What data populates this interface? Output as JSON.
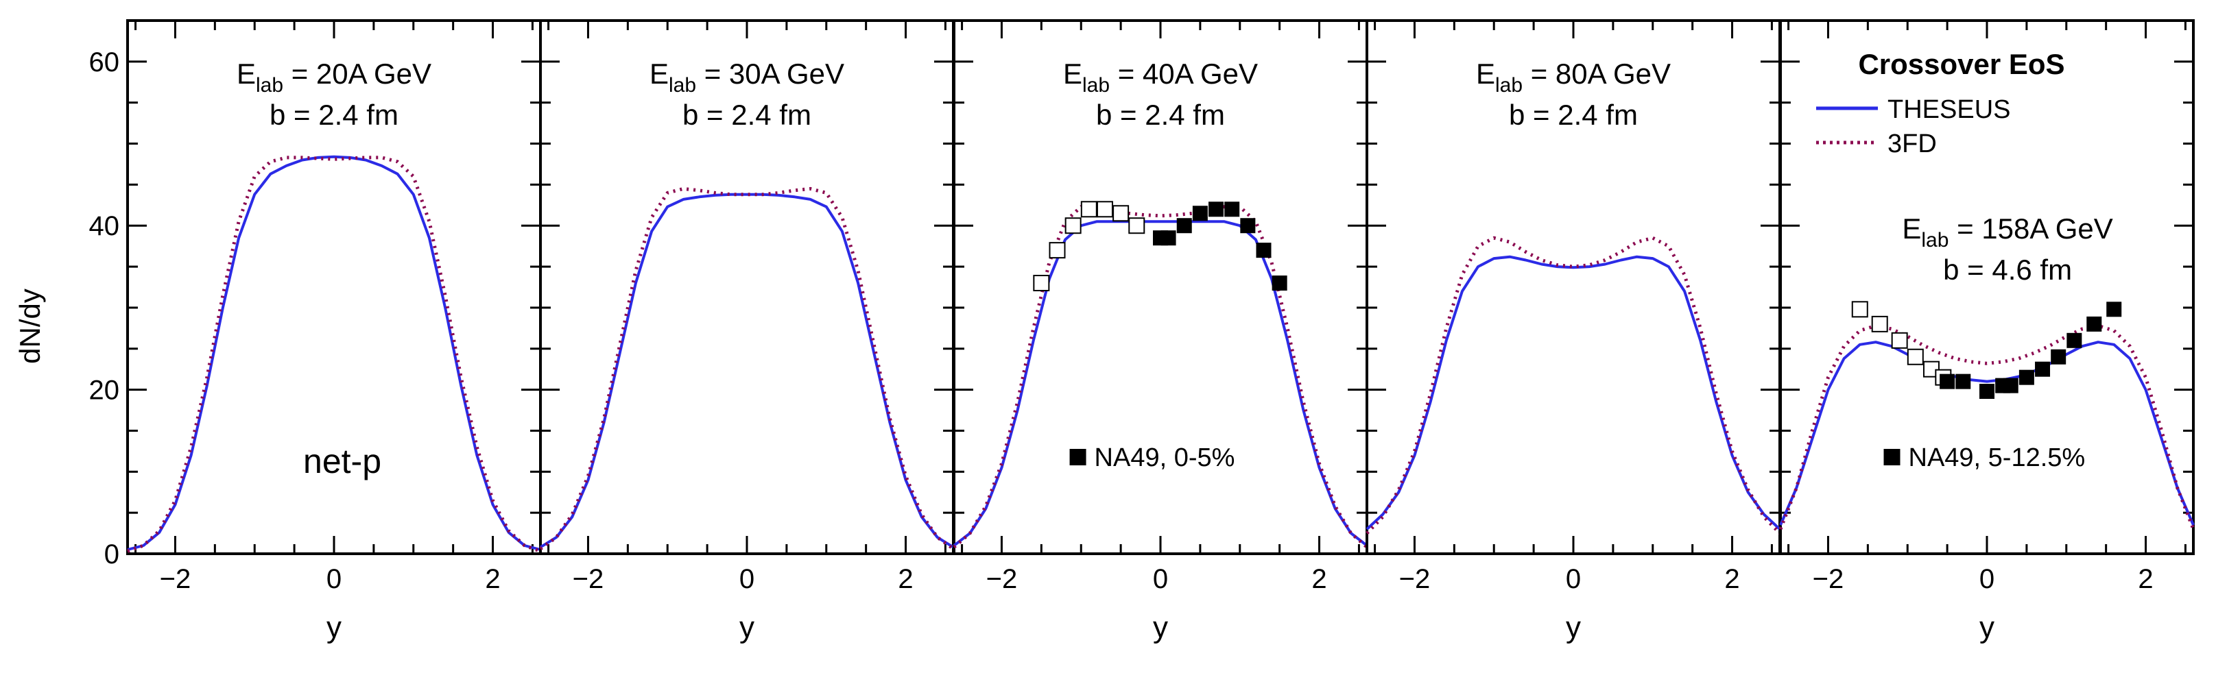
{
  "colors": {
    "theseus": "#2b2be6",
    "threefd": "#8b0a50",
    "axis": "#000000",
    "data_marker": "#000000"
  },
  "y_axis_label": "dN/dy",
  "x_axis_label": "y",
  "legend": {
    "title": "Crossover EoS",
    "items": [
      {
        "label": "THESEUS",
        "style": "solid",
        "color": "#2b2be6"
      },
      {
        "label": "3FD",
        "style": "dotted",
        "color": "#8b0a50"
      }
    ]
  },
  "chart_data": [
    {
      "type": "line",
      "panel": 1,
      "title_main": "E",
      "title_sub": "lab",
      "title_rest": " = 20A GeV",
      "impact": "b = 2.4 fm",
      "note": "net-p",
      "xlabel": "y",
      "ylabel": "dN/dy",
      "xlim": [
        -2.6,
        2.6
      ],
      "ylim": [
        0,
        65
      ],
      "xticks": [
        -2,
        0,
        2
      ],
      "yticks": [
        0,
        20,
        40,
        60
      ],
      "series": [
        {
          "name": "THESEUS",
          "x": [
            -2.6,
            -2.4,
            -2.2,
            -2.0,
            -1.8,
            -1.6,
            -1.4,
            -1.2,
            -1.0,
            -0.8,
            -0.6,
            -0.4,
            -0.2,
            0.0,
            0.2,
            0.4,
            0.6,
            0.8,
            1.0,
            1.2,
            1.4,
            1.6,
            1.8,
            2.0,
            2.2,
            2.4,
            2.6
          ],
          "y": [
            0.5,
            1.0,
            2.6,
            6.0,
            12.0,
            20.5,
            30.0,
            38.5,
            43.8,
            46.3,
            47.3,
            48.0,
            48.3,
            48.4,
            48.3,
            48.0,
            47.3,
            46.3,
            43.8,
            38.5,
            30.0,
            20.5,
            12.0,
            6.0,
            2.6,
            1.0,
            0.5
          ]
        },
        {
          "name": "3FD",
          "x": [
            -2.6,
            -2.4,
            -2.2,
            -2.0,
            -1.8,
            -1.6,
            -1.4,
            -1.2,
            -1.0,
            -0.8,
            -0.6,
            -0.4,
            -0.2,
            0.0,
            0.2,
            0.4,
            0.6,
            0.8,
            1.0,
            1.2,
            1.4,
            1.6,
            1.8,
            2.0,
            2.2,
            2.4,
            2.6
          ],
          "y": [
            0.3,
            1.0,
            2.8,
            6.5,
            13.0,
            21.5,
            31.5,
            40.5,
            46.0,
            47.8,
            48.3,
            48.3,
            48.2,
            48.1,
            48.2,
            48.3,
            48.3,
            47.8,
            46.0,
            40.5,
            31.5,
            21.5,
            13.0,
            6.5,
            2.8,
            1.0,
            0.3
          ]
        }
      ],
      "data_points": null
    },
    {
      "type": "line",
      "panel": 2,
      "title_main": "E",
      "title_sub": "lab",
      "title_rest": " = 30A GeV",
      "impact": "b = 2.4 fm",
      "xlabel": "y",
      "ylabel": "",
      "xlim": [
        -2.6,
        2.6
      ],
      "ylim": [
        0,
        65
      ],
      "xticks": [
        -2,
        0,
        2
      ],
      "yticks": [
        0,
        20,
        40,
        60
      ],
      "series": [
        {
          "name": "THESEUS",
          "x": [
            -2.6,
            -2.4,
            -2.2,
            -2.0,
            -1.8,
            -1.6,
            -1.4,
            -1.2,
            -1.0,
            -0.8,
            -0.6,
            -0.4,
            -0.2,
            0.0,
            0.2,
            0.4,
            0.6,
            0.8,
            1.0,
            1.2,
            1.4,
            1.6,
            1.8,
            2.0,
            2.2,
            2.4,
            2.6
          ],
          "y": [
            0.8,
            2.0,
            4.5,
            9.0,
            16.0,
            24.5,
            33.0,
            39.3,
            42.3,
            43.2,
            43.5,
            43.7,
            43.8,
            43.8,
            43.8,
            43.7,
            43.5,
            43.2,
            42.3,
            39.3,
            33.0,
            24.5,
            16.0,
            9.0,
            4.5,
            2.0,
            0.8
          ]
        },
        {
          "name": "3FD",
          "x": [
            -2.6,
            -2.4,
            -2.2,
            -2.0,
            -1.8,
            -1.6,
            -1.4,
            -1.2,
            -1.0,
            -0.8,
            -0.6,
            -0.4,
            -0.2,
            0.0,
            0.2,
            0.4,
            0.6,
            0.8,
            1.0,
            1.2,
            1.4,
            1.6,
            1.8,
            2.0,
            2.2,
            2.4,
            2.6
          ],
          "y": [
            0.6,
            2.0,
            4.8,
            9.5,
            16.5,
            25.5,
            34.5,
            41.0,
            44.0,
            44.5,
            44.3,
            44.0,
            43.8,
            43.8,
            43.8,
            44.0,
            44.3,
            44.5,
            44.0,
            41.0,
            34.5,
            25.5,
            16.5,
            9.5,
            4.8,
            2.0,
            0.6
          ]
        }
      ],
      "data_points": null
    },
    {
      "type": "line",
      "panel": 3,
      "title_main": "E",
      "title_sub": "lab",
      "title_rest": " = 40A GeV",
      "impact": "b = 2.4 fm",
      "data_label": "NA49, 0-5%",
      "xlabel": "y",
      "ylabel": "",
      "xlim": [
        -2.6,
        2.6
      ],
      "ylim": [
        0,
        65
      ],
      "xticks": [
        -2,
        0,
        2
      ],
      "yticks": [
        0,
        20,
        40,
        60
      ],
      "series": [
        {
          "name": "THESEUS",
          "x": [
            -2.6,
            -2.4,
            -2.2,
            -2.0,
            -1.8,
            -1.6,
            -1.4,
            -1.2,
            -1.0,
            -0.8,
            -0.6,
            -0.4,
            -0.2,
            0.0,
            0.2,
            0.4,
            0.6,
            0.8,
            1.0,
            1.2,
            1.4,
            1.6,
            1.8,
            2.0,
            2.2,
            2.4,
            2.6
          ],
          "y": [
            1.0,
            2.5,
            5.5,
            10.5,
            17.5,
            26.0,
            33.5,
            38.3,
            40.0,
            40.5,
            40.5,
            40.5,
            40.5,
            40.5,
            40.5,
            40.5,
            40.5,
            40.5,
            40.0,
            38.3,
            33.5,
            26.0,
            17.5,
            10.5,
            5.5,
            2.5,
            1.0
          ]
        },
        {
          "name": "3FD",
          "x": [
            -2.6,
            -2.4,
            -2.2,
            -2.0,
            -1.8,
            -1.6,
            -1.4,
            -1.2,
            -1.0,
            -0.8,
            -0.6,
            -0.4,
            -0.2,
            0.0,
            0.2,
            0.4,
            0.6,
            0.8,
            1.0,
            1.2,
            1.4,
            1.6,
            1.8,
            2.0,
            2.2,
            2.4,
            2.6
          ],
          "y": [
            0.8,
            2.5,
            5.8,
            11.0,
            18.5,
            27.5,
            35.5,
            40.5,
            42.3,
            42.3,
            41.8,
            41.5,
            41.3,
            41.2,
            41.3,
            41.5,
            41.8,
            42.3,
            42.3,
            40.5,
            35.5,
            27.5,
            18.5,
            11.0,
            5.8,
            2.5,
            0.8
          ]
        }
      ],
      "data_points": {
        "filled": [
          [
            0.0,
            38.5
          ],
          [
            0.1,
            38.5
          ],
          [
            0.3,
            40.0
          ],
          [
            0.5,
            41.5
          ],
          [
            0.7,
            42.0
          ],
          [
            0.9,
            42.0
          ],
          [
            1.1,
            40.0
          ],
          [
            1.3,
            37.0
          ],
          [
            1.5,
            33.0
          ]
        ],
        "open": [
          [
            -1.5,
            33.0
          ],
          [
            -1.3,
            37.0
          ],
          [
            -1.1,
            40.0
          ],
          [
            -0.9,
            42.0
          ],
          [
            -0.7,
            42.0
          ],
          [
            -0.5,
            41.5
          ],
          [
            -0.3,
            40.0
          ]
        ]
      }
    },
    {
      "type": "line",
      "panel": 4,
      "title_main": "E",
      "title_sub": "lab",
      "title_rest": " = 80A GeV",
      "impact": "b = 2.4 fm",
      "xlabel": "y",
      "ylabel": "",
      "xlim": [
        -2.6,
        2.6
      ],
      "ylim": [
        0,
        65
      ],
      "xticks": [
        -2,
        0,
        2
      ],
      "yticks": [
        0,
        20,
        40,
        60
      ],
      "series": [
        {
          "name": "THESEUS",
          "x": [
            -2.6,
            -2.4,
            -2.2,
            -2.0,
            -1.8,
            -1.6,
            -1.4,
            -1.2,
            -1.0,
            -0.8,
            -0.6,
            -0.4,
            -0.2,
            0.0,
            0.2,
            0.4,
            0.6,
            0.8,
            1.0,
            1.2,
            1.4,
            1.6,
            1.8,
            2.0,
            2.2,
            2.4,
            2.6
          ],
          "y": [
            3.0,
            4.8,
            7.5,
            12.0,
            18.5,
            26.0,
            32.0,
            35.0,
            36.0,
            36.2,
            35.8,
            35.3,
            35.0,
            34.9,
            35.0,
            35.3,
            35.8,
            36.2,
            36.0,
            35.0,
            32.0,
            26.0,
            18.5,
            12.0,
            7.5,
            4.8,
            3.0
          ]
        },
        {
          "name": "3FD",
          "x": [
            -2.6,
            -2.4,
            -2.2,
            -2.0,
            -1.8,
            -1.6,
            -1.4,
            -1.2,
            -1.0,
            -0.8,
            -0.6,
            -0.4,
            -0.2,
            0.0,
            0.2,
            0.4,
            0.6,
            0.8,
            1.0,
            1.2,
            1.4,
            1.6,
            1.8,
            2.0,
            2.2,
            2.4,
            2.6
          ],
          "y": [
            2.5,
            4.5,
            7.8,
            12.5,
            19.5,
            27.5,
            34.0,
            37.5,
            38.5,
            38.0,
            36.8,
            35.8,
            35.2,
            35.0,
            35.2,
            35.8,
            36.8,
            38.0,
            38.5,
            37.5,
            34.0,
            27.5,
            19.5,
            12.5,
            7.8,
            4.5,
            2.5
          ]
        }
      ],
      "data_points": null
    },
    {
      "type": "line",
      "panel": 5,
      "title_main": "E",
      "title_sub": "lab",
      "title_rest": " = 158A GeV",
      "impact": "b = 4.6 fm",
      "data_label": "NA49, 5-12.5%",
      "xlabel": "y",
      "ylabel": "",
      "xlim": [
        -2.6,
        2.6
      ],
      "ylim": [
        0,
        65
      ],
      "xticks": [
        -2,
        0,
        2
      ],
      "yticks": [
        0,
        20,
        40,
        60
      ],
      "series": [
        {
          "name": "THESEUS",
          "x": [
            -2.6,
            -2.4,
            -2.2,
            -2.0,
            -1.8,
            -1.6,
            -1.4,
            -1.2,
            -1.0,
            -0.8,
            -0.6,
            -0.4,
            -0.2,
            0.0,
            0.2,
            0.4,
            0.6,
            0.8,
            1.0,
            1.2,
            1.4,
            1.6,
            1.8,
            2.0,
            2.2,
            2.4,
            2.6
          ],
          "y": [
            3.5,
            8.0,
            14.0,
            20.0,
            23.8,
            25.5,
            25.8,
            25.3,
            24.3,
            23.2,
            22.3,
            21.6,
            21.2,
            21.0,
            21.2,
            21.6,
            22.3,
            23.2,
            24.3,
            25.3,
            25.8,
            25.5,
            23.8,
            20.0,
            14.0,
            8.0,
            3.5
          ]
        },
        {
          "name": "3FD",
          "x": [
            -2.6,
            -2.4,
            -2.2,
            -2.0,
            -1.8,
            -1.6,
            -1.4,
            -1.2,
            -1.0,
            -0.8,
            -0.6,
            -0.4,
            -0.2,
            0.0,
            0.2,
            0.4,
            0.6,
            0.8,
            1.0,
            1.2,
            1.4,
            1.6,
            1.8,
            2.0,
            2.2,
            2.4,
            2.6
          ],
          "y": [
            3.0,
            8.0,
            15.0,
            21.5,
            25.3,
            27.2,
            27.8,
            27.4,
            26.5,
            25.4,
            24.5,
            23.8,
            23.4,
            23.2,
            23.4,
            23.8,
            24.5,
            25.4,
            26.5,
            27.4,
            27.8,
            27.2,
            25.3,
            21.5,
            15.0,
            8.0,
            3.0
          ]
        }
      ],
      "data_points": {
        "filled": [
          [
            -0.5,
            21.0
          ],
          [
            -0.3,
            21.0
          ],
          [
            0.0,
            19.8
          ],
          [
            0.2,
            20.5
          ],
          [
            0.3,
            20.5
          ],
          [
            0.5,
            21.5
          ],
          [
            0.7,
            22.5
          ],
          [
            0.9,
            24.0
          ],
          [
            1.1,
            26.0
          ],
          [
            1.35,
            28.0
          ],
          [
            1.6,
            29.8
          ]
        ],
        "open": [
          [
            -1.6,
            29.8
          ],
          [
            -1.35,
            28.0
          ],
          [
            -1.1,
            26.0
          ],
          [
            -0.9,
            24.0
          ],
          [
            -0.7,
            22.5
          ],
          [
            -0.55,
            21.5
          ]
        ]
      }
    }
  ]
}
